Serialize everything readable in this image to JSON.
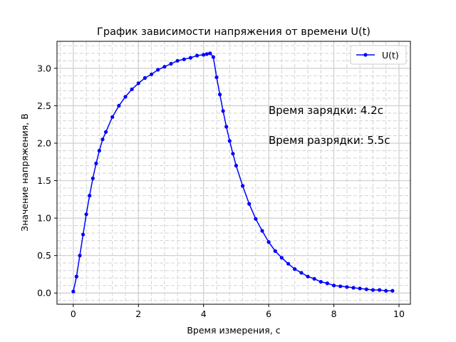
{
  "chart_data": {
    "type": "line",
    "title": "График зависимости напряжения от времени U(t)",
    "xlabel": "Время измерения, с",
    "ylabel": "Значение напряжения, В",
    "xlim": [
      -0.5,
      10.35
    ],
    "ylim": [
      -0.15,
      3.36
    ],
    "xticks": [
      0,
      2,
      4,
      6,
      8,
      10
    ],
    "yticks": [
      0.0,
      0.5,
      1.0,
      1.5,
      2.0,
      2.5,
      3.0
    ],
    "xtick_labels": [
      "0",
      "2",
      "4",
      "6",
      "8",
      "10"
    ],
    "ytick_labels": [
      "0.0",
      "0.5",
      "1.0",
      "1.5",
      "2.0",
      "2.5",
      "3.0"
    ],
    "grid": "major solid, minor dashed",
    "legend": {
      "position": "upper right",
      "entries": [
        "U(t)"
      ]
    },
    "annotations": [
      "Время зарядки: 4.2c",
      "Время разрядки: 5.5c"
    ],
    "series": [
      {
        "name": "U(t)",
        "color": "#0000ff",
        "marker": "circle",
        "x": [
          0.0,
          0.1,
          0.2,
          0.3,
          0.4,
          0.5,
          0.6,
          0.7,
          0.8,
          0.9,
          1.0,
          1.2,
          1.4,
          1.6,
          1.8,
          2.0,
          2.2,
          2.4,
          2.6,
          2.8,
          3.0,
          3.2,
          3.4,
          3.6,
          3.8,
          4.0,
          4.1,
          4.2,
          4.3,
          4.4,
          4.5,
          4.6,
          4.7,
          4.8,
          4.9,
          5.0,
          5.2,
          5.4,
          5.6,
          5.8,
          6.0,
          6.2,
          6.4,
          6.6,
          6.8,
          7.0,
          7.2,
          7.4,
          7.6,
          7.8,
          8.0,
          8.2,
          8.4,
          8.6,
          8.8,
          9.0,
          9.2,
          9.4,
          9.6,
          9.8
        ],
        "y": [
          0.02,
          0.22,
          0.5,
          0.78,
          1.05,
          1.3,
          1.53,
          1.73,
          1.9,
          2.05,
          2.15,
          2.35,
          2.5,
          2.62,
          2.72,
          2.8,
          2.87,
          2.92,
          2.98,
          3.02,
          3.06,
          3.1,
          3.12,
          3.14,
          3.17,
          3.18,
          3.19,
          3.2,
          3.15,
          2.88,
          2.65,
          2.43,
          2.22,
          2.03,
          1.86,
          1.7,
          1.43,
          1.19,
          0.99,
          0.83,
          0.68,
          0.56,
          0.47,
          0.39,
          0.32,
          0.27,
          0.22,
          0.19,
          0.15,
          0.13,
          0.1,
          0.09,
          0.08,
          0.07,
          0.06,
          0.05,
          0.04,
          0.04,
          0.03,
          0.03
        ]
      }
    ]
  }
}
